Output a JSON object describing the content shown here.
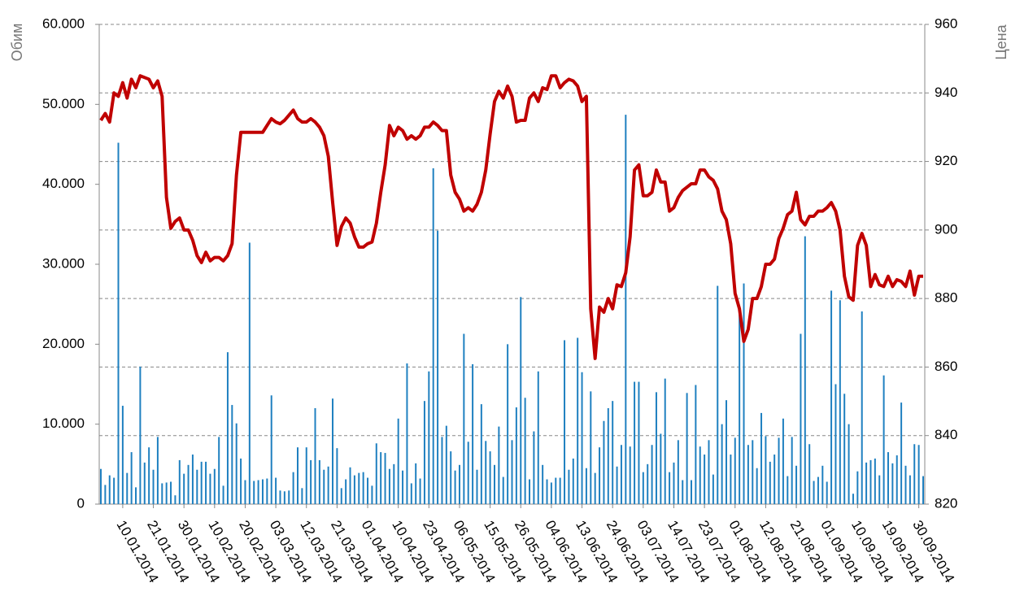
{
  "chart_data": {
    "type": "bar_line",
    "y_label": "Обим",
    "y2_label": "Цена",
    "categories": [
      null,
      null,
      null,
      null,
      null,
      "10.01.2014",
      null,
      null,
      null,
      null,
      null,
      null,
      "21.01.2014",
      null,
      null,
      null,
      null,
      null,
      null,
      "30.01.2014",
      null,
      null,
      null,
      null,
      null,
      null,
      "10.02.2014",
      null,
      null,
      null,
      null,
      null,
      null,
      "20.02.2014",
      null,
      null,
      null,
      null,
      null,
      null,
      "03.03.2014",
      null,
      null,
      null,
      null,
      null,
      null,
      "12.03.2014",
      null,
      null,
      null,
      null,
      null,
      null,
      "21.03.2014",
      null,
      null,
      null,
      null,
      null,
      null,
      "01.04.2014",
      null,
      null,
      null,
      null,
      null,
      null,
      "10.04.2014",
      null,
      null,
      null,
      null,
      null,
      null,
      "23.04.2014",
      null,
      null,
      null,
      null,
      null,
      null,
      "06.05.2014",
      null,
      null,
      null,
      null,
      null,
      null,
      "15.05.2014",
      null,
      null,
      null,
      null,
      null,
      null,
      "26.05.2014",
      null,
      null,
      null,
      null,
      null,
      null,
      "04.06.2014",
      null,
      null,
      null,
      null,
      null,
      null,
      "13.06.2014",
      null,
      null,
      null,
      null,
      null,
      null,
      "24.06.2014",
      null,
      null,
      null,
      null,
      null,
      null,
      "03.07.2014",
      null,
      null,
      null,
      null,
      null,
      null,
      "14.07.2014",
      null,
      null,
      null,
      null,
      null,
      null,
      "23.07.2014",
      null,
      null,
      null,
      null,
      null,
      null,
      "01.08.2014",
      null,
      null,
      null,
      null,
      null,
      null,
      "12.08.2014",
      null,
      null,
      null,
      null,
      null,
      null,
      "21.08.2014",
      null,
      null,
      null,
      null,
      null,
      null,
      "01.09.2014",
      null,
      null,
      null,
      null,
      null,
      null,
      "10.09.2014",
      null,
      null,
      null,
      null,
      null,
      null,
      "19.09.2014",
      null,
      null,
      null,
      null,
      null,
      null,
      "30.09.2014",
      null
    ],
    "series": [
      {
        "type": "bar",
        "color": "#1f80c0",
        "values": [
          4400,
          2400,
          3600,
          3300,
          45200,
          12300,
          3900,
          6500,
          2100,
          17200,
          5200,
          7100,
          4300,
          8400,
          2600,
          2700,
          2800,
          1100,
          5500,
          3800,
          4900,
          6200,
          4300,
          5300,
          5300,
          3800,
          4400,
          8400,
          2300,
          19000,
          12400,
          10100,
          5700,
          3000,
          32700,
          2900,
          3000,
          3100,
          3200,
          13600,
          3300,
          1700,
          1600,
          1700,
          4000,
          7100,
          2000,
          7100,
          5500,
          12000,
          5500,
          4300,
          4700,
          13200,
          7000,
          2000,
          3100,
          4600,
          3600,
          3900,
          4000,
          3300,
          2300,
          7600,
          6500,
          6400,
          4400,
          5000,
          10700,
          4200,
          17600,
          2600,
          5100,
          3200,
          12900,
          16600,
          42000,
          34200,
          8400,
          9800,
          6600,
          4200,
          4900,
          21300,
          7800,
          17500,
          4300,
          12500,
          7900,
          6600,
          4900,
          9700,
          3400,
          20000,
          8000,
          12100,
          25900,
          13300,
          3100,
          9100,
          16600,
          4900,
          3100,
          2700,
          3300,
          3300,
          20500,
          4300,
          5700,
          20800,
          16500,
          4500,
          14100,
          3900,
          7100,
          10400,
          12000,
          12900,
          4700,
          7400,
          48700,
          7200,
          15300,
          15300,
          4000,
          5000,
          7400,
          14000,
          8800,
          15700,
          4000,
          5200,
          8000,
          3000,
          13900,
          3000,
          14900,
          7200,
          6200,
          8000,
          3700,
          27300,
          10000,
          13000,
          6200,
          8300,
          24000,
          27600,
          7400,
          8000,
          4500,
          11400,
          8500,
          5300,
          6200,
          8300,
          10700,
          3500,
          8400,
          4800,
          21300,
          33500,
          7500,
          2900,
          3400,
          4800,
          2800,
          26700,
          15000,
          25500,
          13800,
          10000,
          1300,
          4100,
          24100,
          5200,
          5500,
          5700,
          3600,
          16100,
          6500,
          5100,
          6100,
          12700,
          4800,
          3600,
          7500,
          7400,
          3500
        ]
      },
      {
        "type": "line",
        "axis": "y2",
        "color": "#c00000",
        "values": [
          932,
          934,
          931.5,
          940,
          939,
          943,
          938.5,
          944,
          941.5,
          945,
          944.5,
          944,
          941.5,
          943.5,
          939,
          909.5,
          900.5,
          902.5,
          903.5,
          900,
          900,
          897,
          892.5,
          890.5,
          893.5,
          891,
          892,
          892,
          891,
          892.5,
          896,
          916,
          928.5,
          928.5,
          928.5,
          928.5,
          928.5,
          928.5,
          930.5,
          932.5,
          931.5,
          931,
          932,
          933.5,
          935,
          932.5,
          931.5,
          931.5,
          932.5,
          931.5,
          930,
          927.5,
          921.5,
          908,
          895.5,
          901,
          903.5,
          902,
          898,
          895,
          895,
          896,
          896.5,
          902,
          911,
          919,
          930.5,
          927.5,
          930,
          929,
          926.5,
          927.5,
          926.5,
          927.5,
          930,
          930,
          931.5,
          930.5,
          929,
          929,
          916,
          911,
          909,
          905.5,
          906.5,
          905.5,
          907.5,
          911,
          917.5,
          928,
          937.5,
          940.5,
          938.5,
          942,
          939,
          931.5,
          932,
          932,
          938.5,
          940,
          937.5,
          941.5,
          941,
          945,
          945,
          941.5,
          943,
          944,
          943.5,
          942,
          937.5,
          939,
          877,
          862.5,
          877.5,
          876,
          880,
          877,
          884,
          883.5,
          887.5,
          898,
          917.5,
          919,
          910,
          910,
          911,
          917.5,
          914,
          914,
          905.5,
          906.5,
          909.5,
          911.5,
          912.5,
          913.5,
          913.5,
          917.5,
          917.5,
          915.5,
          914.5,
          912,
          905.5,
          903,
          896,
          881.5,
          877,
          867.5,
          871,
          880,
          880,
          883.5,
          890,
          890,
          891.5,
          897.5,
          900.5,
          904.5,
          905.5,
          911,
          903,
          901.5,
          904,
          904,
          905.5,
          905.5,
          906.5,
          908,
          905.5,
          900,
          886.5,
          880.5,
          879.5,
          895.5,
          899,
          895.5,
          883.5,
          887,
          884,
          883.5,
          886.5,
          883.5,
          885.5,
          885,
          883.5,
          888,
          881,
          886.5,
          886.5
        ]
      }
    ],
    "ylim": [
      0,
      60000
    ],
    "yticks": [
      0,
      {
        "value": 10000,
        "label": "10.000"
      },
      {
        "value": 20000,
        "label": "20.000"
      },
      {
        "value": 30000,
        "label": "30.000"
      },
      {
        "value": 40000,
        "label": "40.000"
      },
      {
        "value": 50000,
        "label": "50.000"
      },
      {
        "value": 60000,
        "label": "60.000"
      }
    ],
    "y2lim": [
      820,
      960
    ],
    "y2ticks": [
      820,
      840,
      860,
      880,
      900,
      920,
      940,
      960
    ],
    "grid": "y2"
  }
}
